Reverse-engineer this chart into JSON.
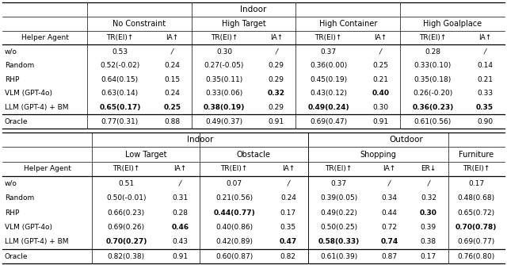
{
  "fig_width": 6.4,
  "fig_height": 3.34,
  "dpi": 100,
  "top_section": {
    "main_header": "Indoor",
    "col_groups": [
      "No Constraint",
      "High Target",
      "High Container",
      "High Goalplace"
    ],
    "col_subheaders": [
      "TR(EI)↑",
      "IA↑",
      "TR(EI)↑",
      "IA↑",
      "TR(EI)↑",
      "IA↑",
      "TR(EI)↑",
      "IA↑"
    ],
    "rows": [
      {
        "agent": "w/o",
        "data": [
          "0.53",
          "/",
          "0.30",
          "/",
          "0.37",
          "/",
          "0.28",
          "/"
        ],
        "bold": []
      },
      {
        "agent": "Random",
        "data": [
          "0.52(-0.02)",
          "0.24",
          "0.27(-0.05)",
          "0.29",
          "0.36(0.00)",
          "0.25",
          "0.33(0.10)",
          "0.14"
        ],
        "bold": []
      },
      {
        "agent": "RHP",
        "data": [
          "0.64(0.15)",
          "0.15",
          "0.35(0.11)",
          "0.29",
          "0.45(0.19)",
          "0.21",
          "0.35(0.18)",
          "0.21"
        ],
        "bold": []
      },
      {
        "agent": "VLM (GPT-4o)",
        "data": [
          "0.63(0.14)",
          "0.24",
          "0.33(0.06)",
          "0.32",
          "0.43(0.12)",
          "0.40",
          "0.26(-0.20)",
          "0.33"
        ],
        "bold": [
          3,
          5
        ]
      },
      {
        "agent": "LLM (GPT-4) + BM",
        "data": [
          "0.65(0.17)",
          "0.25",
          "0.38(0.19)",
          "0.29",
          "0.49(0.24)",
          "0.30",
          "0.36(0.23)",
          "0.35"
        ],
        "bold": [
          0,
          1,
          2,
          4,
          6,
          7
        ]
      }
    ],
    "oracle": {
      "agent": "Oracle",
      "data": [
        "0.77(0.31)",
        "0.88",
        "0.49(0.37)",
        "0.91",
        "0.69(0.47)",
        "0.91",
        "0.61(0.56)",
        "0.90"
      ],
      "bold": []
    }
  },
  "bottom_section": {
    "main_headers": [
      "Indoor",
      "Outdoor"
    ],
    "col_groups": [
      "Low Target",
      "Obstacle",
      "Shopping",
      "Furniture"
    ],
    "col_subheaders": [
      "TR(EI)↑",
      "IA↑",
      "TR(EI)↑",
      "IA↑",
      "TR(EI)↑",
      "IA↑",
      "ER↓",
      "TR(EI)↑"
    ],
    "rows": [
      {
        "agent": "w/o",
        "data": [
          "0.51",
          "/",
          "0.07",
          "/",
          "0.37",
          "/",
          "/",
          "0.17"
        ],
        "bold": []
      },
      {
        "agent": "Random",
        "data": [
          "0.50(-0.01)",
          "0.31",
          "0.21(0.56)",
          "0.24",
          "0.39(0.05)",
          "0.34",
          "0.32",
          "0.48(0.68)"
        ],
        "bold": []
      },
      {
        "agent": "RHP",
        "data": [
          "0.66(0.23)",
          "0.28",
          "0.44(0.77)",
          "0.17",
          "0.49(0.22)",
          "0.44",
          "0.30",
          "0.65(0.72)"
        ],
        "bold": [
          2,
          6
        ]
      },
      {
        "agent": "VLM (GPT-4o)",
        "data": [
          "0.69(0.26)",
          "0.46",
          "0.40(0.86)",
          "0.35",
          "0.50(0.25)",
          "0.72",
          "0.39",
          "0.70(0.78)"
        ],
        "bold": [
          1,
          7
        ]
      },
      {
        "agent": "LLM (GPT-4) + BM",
        "data": [
          "0.70(0.27)",
          "0.43",
          "0.42(0.89)",
          "0.47",
          "0.58(0.33)",
          "0.74",
          "0.38",
          "0.69(0.77)"
        ],
        "bold": [
          0,
          3,
          4,
          5
        ]
      }
    ],
    "oracle": {
      "agent": "Oracle",
      "data": [
        "0.82(0.38)",
        "0.91",
        "0.60(0.87)",
        "0.82",
        "0.61(0.39)",
        "0.87",
        "0.17",
        "0.76(0.80)"
      ],
      "bold": []
    }
  },
  "line_color": "#000000",
  "normal_color": "#000000"
}
